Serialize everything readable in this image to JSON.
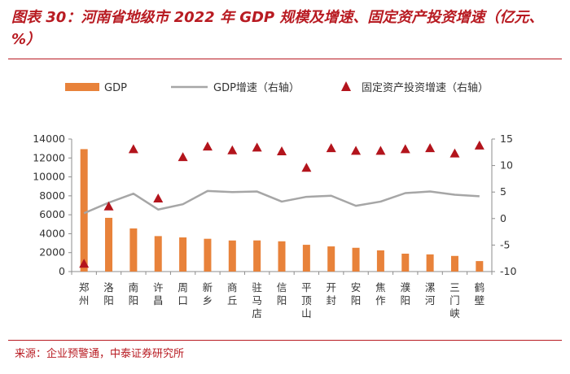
{
  "title": "图表 30：河南省地级市 2022 年 GDP 规模及增速、固定资产投资增速（亿元、%）",
  "source": "来源：企业预警通，中泰证券研究所",
  "colors": {
    "gdp_bar": "#e8823a",
    "gdp_growth_line": "#a6a6a6",
    "invest_marker": "#b3141c",
    "accent": "#b81b22"
  },
  "chart_data": {
    "type": "bar",
    "title": "河南省地级市 2022 年 GDP 规模及增速、固定资产投资增速（亿元、%）",
    "categories": [
      "郑州",
      "洛阳",
      "南阳",
      "许昌",
      "周口",
      "新乡",
      "商丘",
      "驻马店",
      "信阳",
      "平顶山",
      "开封",
      "安阳",
      "焦作",
      "濮阳",
      "漯河",
      "三门峡",
      "鹤壁"
    ],
    "series": [
      {
        "name": "GDP",
        "type": "bar",
        "axis": "left",
        "values": [
          12934,
          5675,
          4555,
          3746,
          3606,
          3463,
          3283,
          3289,
          3196,
          2828,
          2657,
          2511,
          2240,
          1889,
          1813,
          1652,
          1107
        ]
      },
      {
        "name": "GDP增速（右轴）",
        "type": "line",
        "axis": "right",
        "values": [
          1.0,
          3.0,
          4.7,
          1.7,
          2.7,
          5.2,
          5.0,
          5.1,
          3.2,
          4.1,
          4.3,
          2.4,
          3.2,
          4.8,
          5.1,
          4.5,
          4.2
        ]
      },
      {
        "name": "固定资产投资增速（右轴）",
        "type": "scatter",
        "marker": "triangle",
        "axis": "right",
        "values": [
          -8.5,
          2.3,
          13.1,
          3.8,
          11.6,
          13.6,
          12.9,
          13.4,
          12.7,
          9.6,
          13.3,
          12.8,
          12.8,
          13.1,
          13.3,
          12.3,
          13.8
        ]
      }
    ],
    "y_left": {
      "lim": [
        0,
        14000
      ],
      "ticks": [
        0,
        2000,
        4000,
        6000,
        8000,
        10000,
        12000,
        14000
      ]
    },
    "y_right": {
      "lim": [
        -10,
        15
      ],
      "ticks": [
        -10,
        -5,
        0,
        5,
        10,
        15
      ]
    },
    "legend": {
      "position": "top",
      "items": [
        "GDP",
        "GDP增速（右轴）",
        "固定资产投资增速（右轴）"
      ]
    },
    "grid": false
  }
}
